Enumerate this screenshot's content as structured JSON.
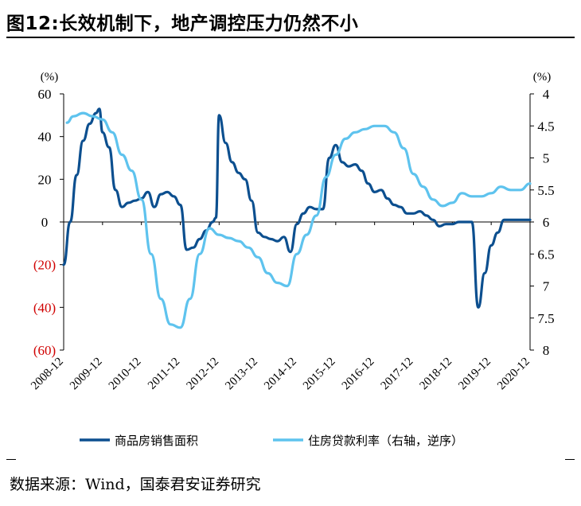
{
  "figure": {
    "title": "图12:长效机制下，地产调控压力仍然不小",
    "source": "数据来源：Wind，国泰君安证券研究"
  },
  "colors": {
    "sales": "#0c4f8f",
    "mortgage": "#5ec3ee"
  },
  "chart_data": {
    "type": "line",
    "xlabel": "",
    "ylabel_left": "(%)",
    "ylabel_right": "(%)",
    "ylim_left": [
      -60,
      60
    ],
    "ylim_right": [
      4,
      8
    ],
    "right_axis_inverted": true,
    "left_ticks": [
      {
        "value": 60,
        "label": "60",
        "negative": false
      },
      {
        "value": 40,
        "label": "40",
        "negative": false
      },
      {
        "value": 20,
        "label": "20",
        "negative": false
      },
      {
        "value": 0,
        "label": "0",
        "negative": false
      },
      {
        "value": -20,
        "label": "(20)",
        "negative": true
      },
      {
        "value": -40,
        "label": "(40)",
        "negative": true
      },
      {
        "value": -60,
        "label": "(60)",
        "negative": true
      }
    ],
    "right_ticks": [
      {
        "value": 4,
        "label": "4"
      },
      {
        "value": 4.5,
        "label": "4.5"
      },
      {
        "value": 5,
        "label": "5"
      },
      {
        "value": 5.5,
        "label": "5.5"
      },
      {
        "value": 6,
        "label": "6"
      },
      {
        "value": 6.5,
        "label": "6.5"
      },
      {
        "value": 7,
        "label": "7"
      },
      {
        "value": 7.5,
        "label": "7.5"
      },
      {
        "value": 8,
        "label": "8"
      }
    ],
    "x_ticks": [
      "2008-12",
      "2009-12",
      "2010-12",
      "2011-12",
      "2012-12",
      "2013-12",
      "2014-12",
      "2015-12",
      "2016-12",
      "2017-12",
      "2018-12",
      "2019-12",
      "2020-12"
    ],
    "legend_position": "bottom",
    "series": [
      {
        "name": "商品房销售面积",
        "axis": "left",
        "x": [
          "2008-12",
          "2009-02",
          "2009-04",
          "2009-06",
          "2009-08",
          "2009-10",
          "2009-11",
          "2009-12",
          "2010-02",
          "2010-04",
          "2010-06",
          "2010-08",
          "2010-10",
          "2010-12",
          "2011-02",
          "2011-04",
          "2011-06",
          "2011-08",
          "2011-10",
          "2011-12",
          "2012-02",
          "2012-04",
          "2012-06",
          "2012-08",
          "2012-10",
          "2012-11",
          "2012-12",
          "2013-02",
          "2013-04",
          "2013-06",
          "2013-08",
          "2013-10",
          "2013-12",
          "2014-02",
          "2014-04",
          "2014-06",
          "2014-08",
          "2014-10",
          "2014-12",
          "2015-02",
          "2015-04",
          "2015-06",
          "2015-08",
          "2015-10",
          "2015-12",
          "2016-02",
          "2016-04",
          "2016-06",
          "2016-08",
          "2016-10",
          "2016-12",
          "2017-02",
          "2017-04",
          "2017-06",
          "2017-08",
          "2017-10",
          "2017-12",
          "2018-02",
          "2018-04",
          "2018-06",
          "2018-08",
          "2018-10",
          "2018-12",
          "2019-02",
          "2019-04",
          "2019-06",
          "2019-08",
          "2019-10",
          "2019-12",
          "2020-02",
          "2020-04",
          "2020-06",
          "2020-08",
          "2020-10",
          "2020-12"
        ],
        "values": [
          -20,
          0,
          22,
          38,
          46,
          51,
          53,
          42,
          35,
          15,
          7,
          9,
          10,
          11,
          14,
          7,
          13,
          14,
          12,
          8,
          -13,
          -12,
          -8,
          -4,
          0,
          2,
          50,
          37,
          28,
          23,
          20,
          10,
          -5,
          -7,
          -8,
          -9,
          -7,
          -14,
          -1,
          4,
          7,
          6,
          6,
          30,
          36,
          28,
          26,
          27,
          24,
          18,
          14,
          15,
          11,
          8,
          7,
          4,
          4,
          5,
          3,
          1,
          -2,
          -1,
          -1,
          0,
          0,
          0,
          -40,
          -24,
          -11,
          -5,
          1,
          1,
          1,
          1,
          1
        ]
      },
      {
        "name": "住房贷款利率（右轴，逆序）",
        "axis": "right",
        "x": [
          "2009-01",
          "2009-03",
          "2009-06",
          "2009-09",
          "2009-12",
          "2010-03",
          "2010-06",
          "2010-09",
          "2010-12",
          "2011-03",
          "2011-06",
          "2011-09",
          "2011-12",
          "2012-03",
          "2012-06",
          "2012-09",
          "2012-12",
          "2013-03",
          "2013-06",
          "2013-09",
          "2013-12",
          "2014-03",
          "2014-06",
          "2014-09",
          "2014-12",
          "2015-03",
          "2015-06",
          "2015-09",
          "2015-12",
          "2016-03",
          "2016-06",
          "2016-09",
          "2016-12",
          "2017-03",
          "2017-06",
          "2017-09",
          "2017-12",
          "2018-03",
          "2018-06",
          "2018-09",
          "2018-12",
          "2019-03",
          "2019-06",
          "2019-09",
          "2019-12",
          "2020-03",
          "2020-06",
          "2020-09",
          "2020-12"
        ],
        "values": [
          4.45,
          4.35,
          4.3,
          4.35,
          4.4,
          4.6,
          4.95,
          5.2,
          5.65,
          6.5,
          7.2,
          7.6,
          7.65,
          7.2,
          6.5,
          6.1,
          6.2,
          6.25,
          6.3,
          6.4,
          6.55,
          6.8,
          6.95,
          7.0,
          6.5,
          6.2,
          5.9,
          5.3,
          4.95,
          4.7,
          4.6,
          4.55,
          4.5,
          4.5,
          4.6,
          4.85,
          5.25,
          5.45,
          5.65,
          5.75,
          5.7,
          5.55,
          5.6,
          5.6,
          5.55,
          5.45,
          5.5,
          5.5,
          5.4
        ]
      }
    ]
  }
}
